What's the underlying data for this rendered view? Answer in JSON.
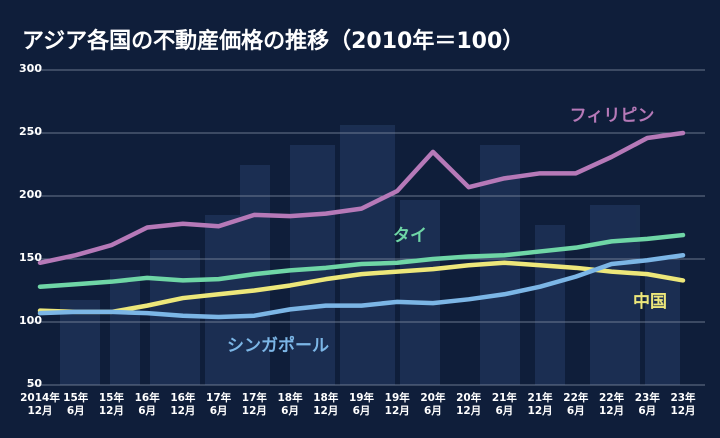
{
  "chart_data": {
    "type": "line",
    "title": "アジア各国の不動産価格の推移（2010年＝100）",
    "categories": [
      "2014年\n12月",
      "15年\n6月",
      "15年\n12月",
      "16年\n6月",
      "16年\n12月",
      "17年\n6月",
      "17年\n12月",
      "18年\n6月",
      "18年\n12月",
      "19年\n6月",
      "19年\n12月",
      "20年\n6月",
      "20年\n12月",
      "21年\n6月",
      "21年\n12月",
      "22年\n6月",
      "22年\n12月",
      "23年\n6月",
      "23年\n12月"
    ],
    "series": [
      {
        "name": "フィリピン",
        "color": "#b679b8",
        "values": [
          147,
          153,
          161,
          175,
          178,
          176,
          185,
          184,
          186,
          190,
          204,
          235,
          207,
          214,
          218,
          218,
          231,
          246,
          250
        ]
      },
      {
        "name": "タイ",
        "color": "#6fd6a6",
        "values": [
          128,
          130,
          132,
          135,
          133,
          134,
          138,
          141,
          143,
          146,
          147,
          150,
          152,
          153,
          156,
          159,
          164,
          166,
          169
        ]
      },
      {
        "name": "中国",
        "color": "#ede77a",
        "values": [
          109,
          108,
          108,
          113,
          119,
          122,
          125,
          129,
          134,
          138,
          140,
          142,
          145,
          147,
          145,
          143,
          140,
          138,
          133
        ]
      },
      {
        "name": "シンガポール",
        "color": "#7cb6e6",
        "values": [
          107,
          108,
          108,
          107,
          105,
          104,
          105,
          110,
          113,
          113,
          116,
          115,
          118,
          122,
          128,
          136,
          146,
          149,
          153
        ]
      }
    ],
    "ylim": [
      50,
      300
    ],
    "yticks": [
      50,
      100,
      150,
      200,
      250,
      300
    ],
    "grid": true
  }
}
